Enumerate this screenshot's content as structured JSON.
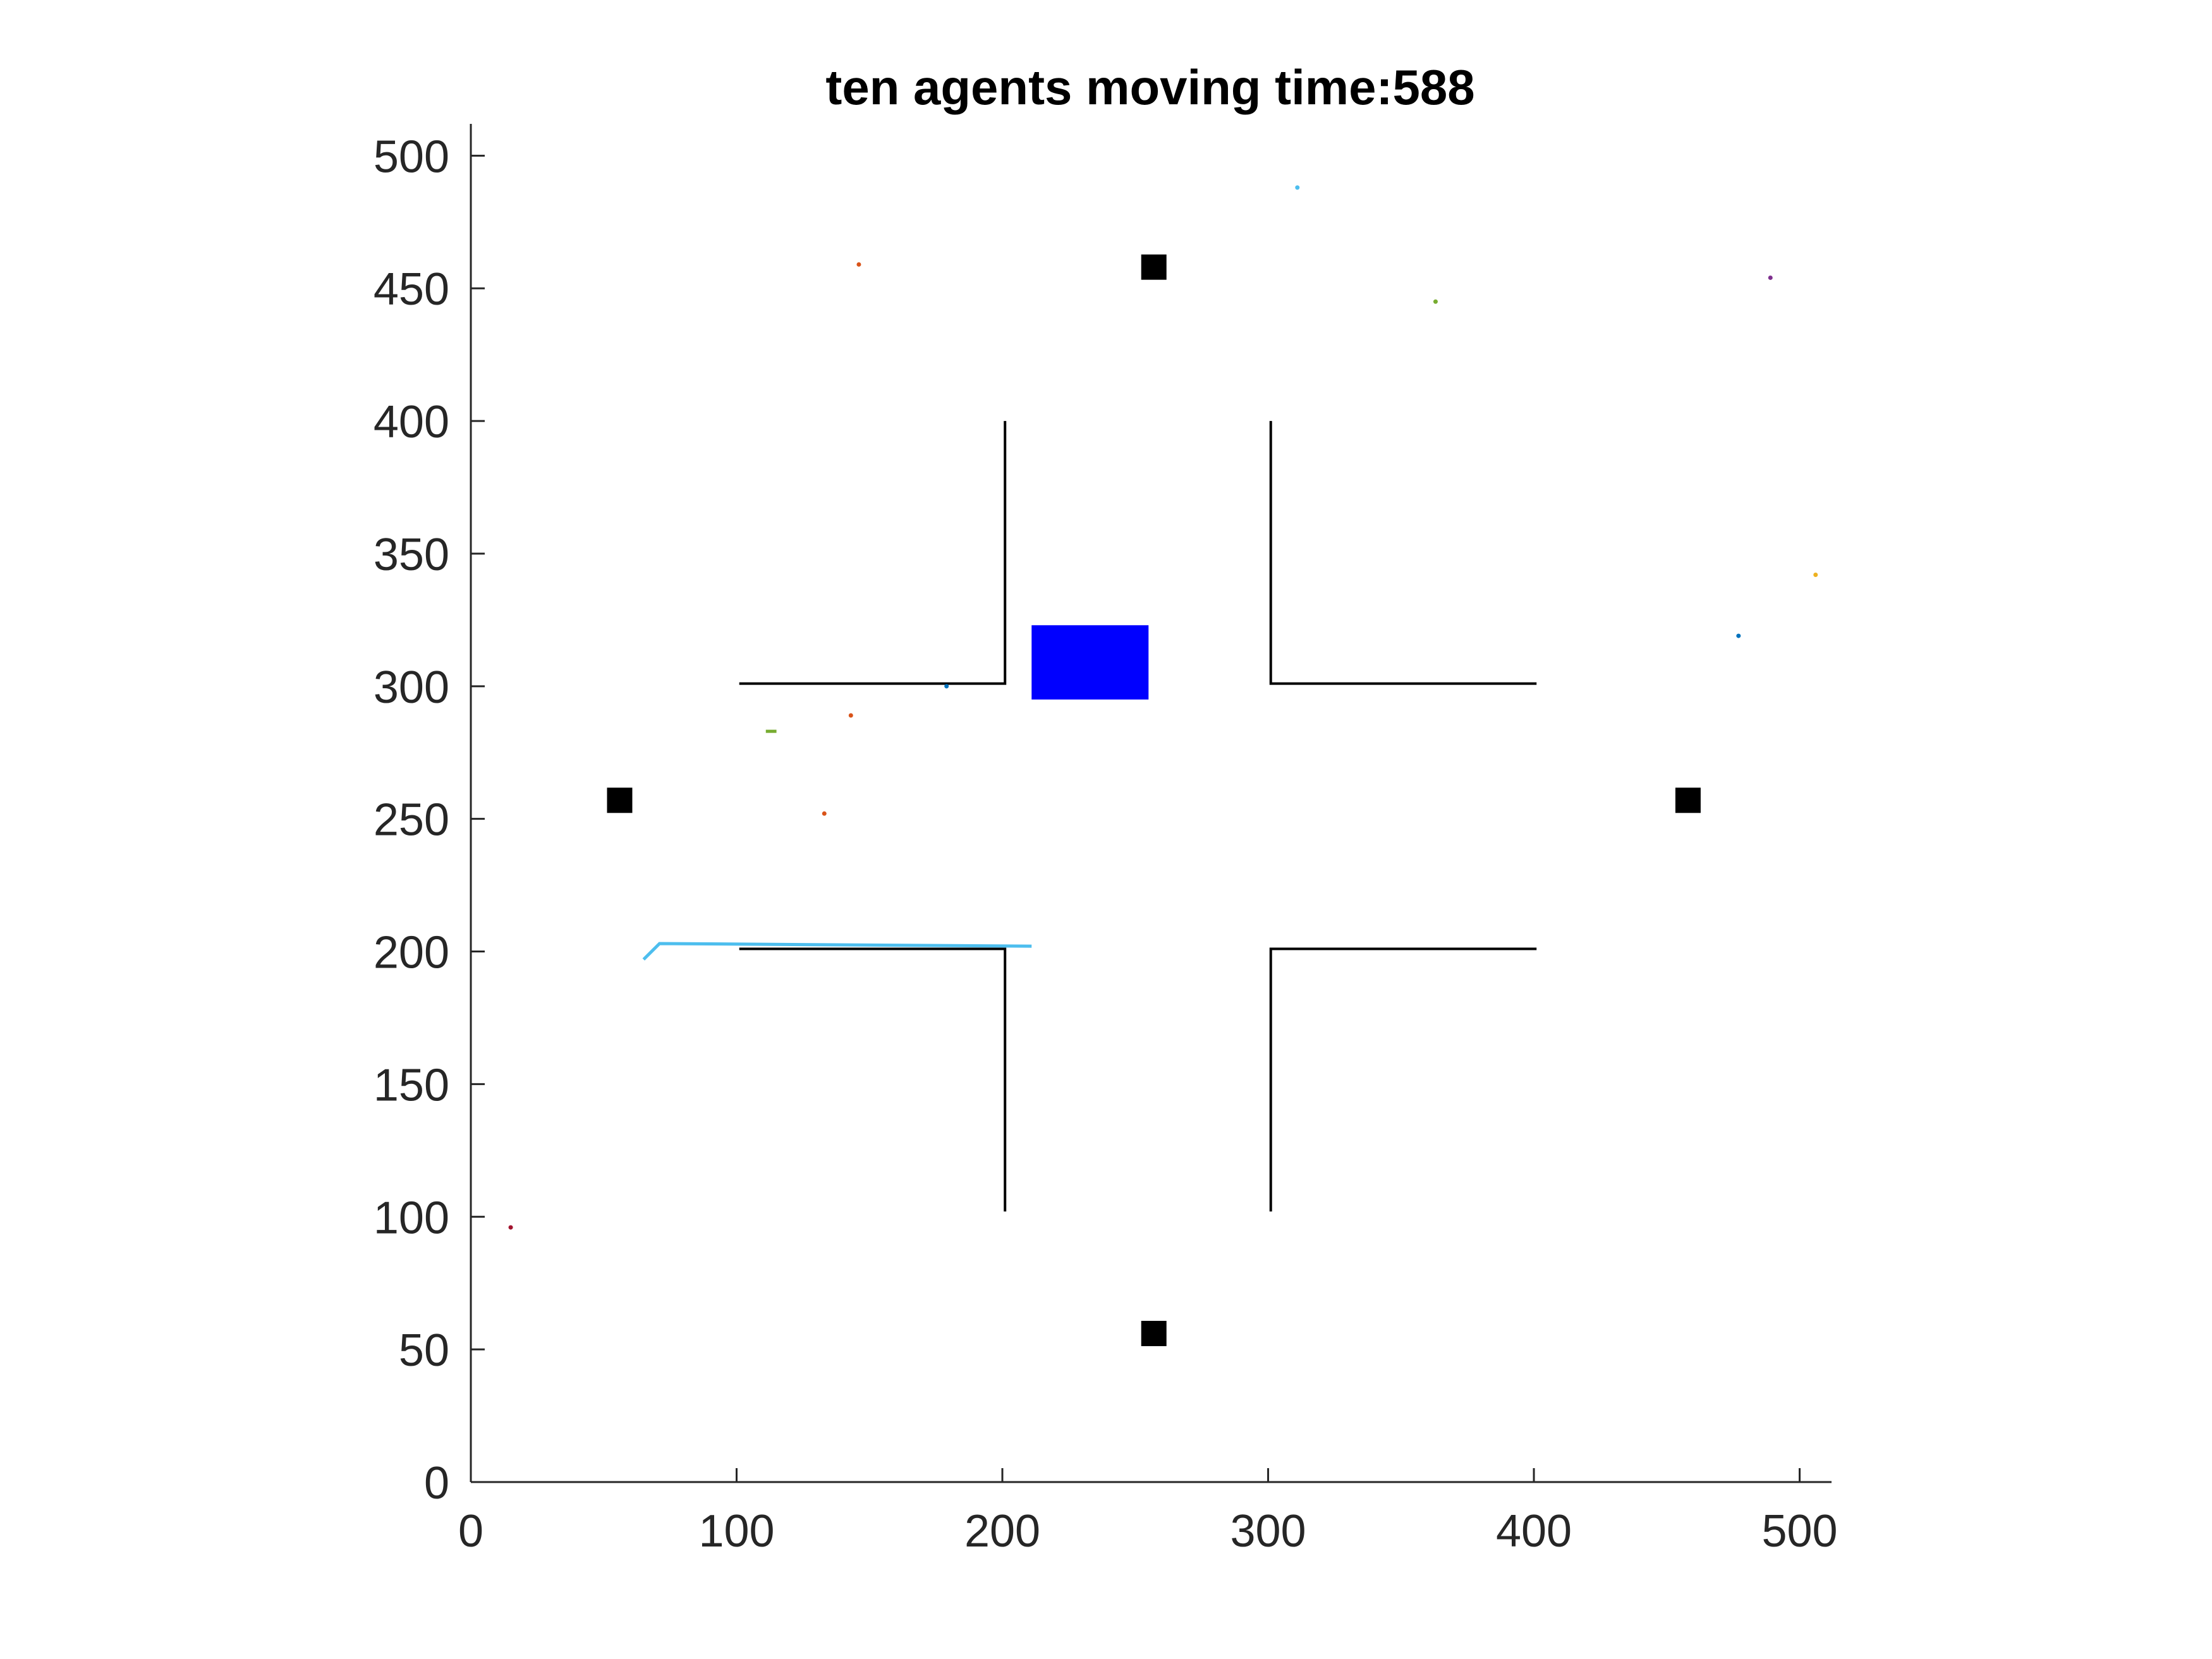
{
  "chart_data": {
    "type": "scatter",
    "title": "ten agents moving time:588",
    "xlabel": "",
    "ylabel": "",
    "xlim": [
      0,
      512
    ],
    "ylim": [
      0,
      512
    ],
    "x_ticks": [
      0,
      100,
      200,
      300,
      400,
      500
    ],
    "y_ticks": [
      0,
      50,
      100,
      150,
      200,
      250,
      300,
      350,
      400,
      450,
      500
    ],
    "grid": false,
    "walls": [
      {
        "x": [
          101,
          201,
          201
        ],
        "y": [
          301,
          301,
          400
        ]
      },
      {
        "x": [
          301,
          301,
          401
        ],
        "y": [
          400,
          301,
          301
        ]
      },
      {
        "x": [
          101,
          201,
          201
        ],
        "y": [
          201,
          201,
          102
        ]
      },
      {
        "x": [
          401,
          301,
          301
        ],
        "y": [
          201,
          201,
          102
        ]
      }
    ],
    "wall_color": "#000000",
    "obstacle": {
      "x0": 211,
      "x1": 255,
      "y0": 295,
      "y1": 323,
      "color": "#0000ff"
    },
    "targets": [
      {
        "x": 257,
        "y": 458
      },
      {
        "x": 56,
        "y": 257
      },
      {
        "x": 458,
        "y": 257
      },
      {
        "x": 257,
        "y": 56
      }
    ],
    "target_color": "#000000",
    "trails": [
      {
        "x": [
          65,
          71,
          211
        ],
        "y": [
          197,
          203,
          202
        ],
        "color": "#4dbeee"
      },
      {
        "x": [
          111,
          115
        ],
        "y": [
          283,
          283
        ],
        "color": "#77ac30"
      }
    ],
    "agents": [
      {
        "x": 146,
        "y": 459,
        "color": "#d95319"
      },
      {
        "x": 311,
        "y": 488,
        "color": "#4dbeee"
      },
      {
        "x": 363,
        "y": 445,
        "color": "#77ac30"
      },
      {
        "x": 489,
        "y": 454,
        "color": "#7e2f8e"
      },
      {
        "x": 506,
        "y": 342,
        "color": "#edb120"
      },
      {
        "x": 477,
        "y": 319,
        "color": "#0072bd"
      },
      {
        "x": 143,
        "y": 289,
        "color": "#d95319"
      },
      {
        "x": 133,
        "y": 252,
        "color": "#d95319"
      },
      {
        "x": 179,
        "y": 300,
        "color": "#0072bd"
      },
      {
        "x": 15,
        "y": 96,
        "color": "#a2142f"
      }
    ]
  }
}
